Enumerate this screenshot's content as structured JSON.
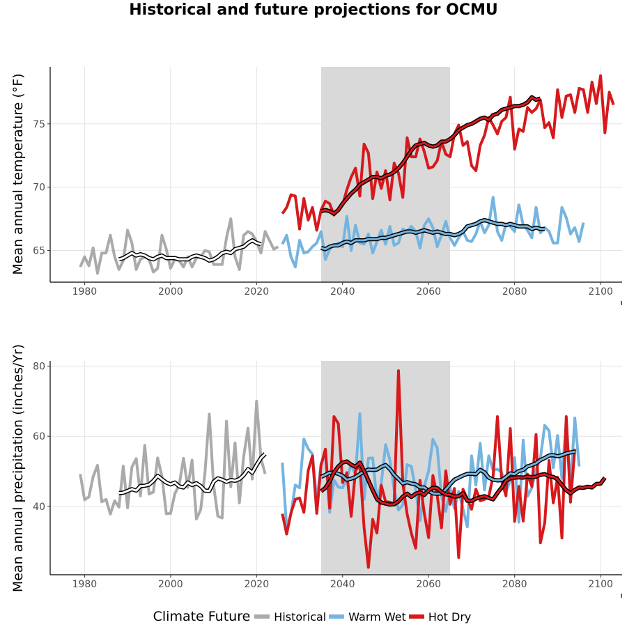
{
  "title": "Historical and future projections for OCMU",
  "legend": {
    "title": "Climate Future",
    "items": [
      {
        "label": "Historical",
        "color": "#aaaaaa"
      },
      {
        "label": "Warm Wet",
        "color": "#74b4e0"
      },
      {
        "label": "Hot Dry",
        "color": "#d7191c"
      }
    ]
  },
  "chart_data": [
    {
      "type": "line",
      "ylabel": "Mean annual temperature (°F)",
      "xlabel": "",
      "xlim": [
        1972,
        2105
      ],
      "ylim": [
        62.5,
        79.5
      ],
      "x_ticks": [
        1980,
        2000,
        2020,
        2040,
        2060,
        2080,
        2100
      ],
      "y_ticks": [
        65,
        70,
        75
      ],
      "shaded_period": [
        2035,
        2065
      ],
      "grid": true,
      "series": [
        {
          "name": "Historical",
          "color": "#aaaaaa",
          "x_start": 1979,
          "values": [
            63.7,
            64.5,
            63.8,
            65.2,
            63.2,
            64.8,
            64.8,
            66.2,
            64.5,
            63.5,
            64.2,
            66.6,
            65.6,
            63.5,
            64.3,
            64.5,
            64.3,
            63.3,
            63.6,
            66.2,
            65.1,
            63.6,
            64.3,
            64.2,
            63.7,
            64.5,
            63.7,
            64.4,
            64.5,
            65.0,
            64.9,
            63.9,
            63.9,
            63.9,
            66.0,
            67.5,
            64.5,
            63.5,
            66.2,
            66.5,
            66.3,
            65.7,
            64.8,
            66.5,
            65.8,
            65.1,
            65.3
          ]
        },
        {
          "name": "Warm Wet",
          "color": "#74b4e0",
          "x_start": 2026,
          "values": [
            65.5,
            66.2,
            64.5,
            63.7,
            65.8,
            64.8,
            64.9,
            65.3,
            65.6,
            66.5,
            64.3,
            65.1,
            65.4,
            65.6,
            65.3,
            67.7,
            65.0,
            67.0,
            65.6,
            65.5,
            66.3,
            64.8,
            65.7,
            66.6,
            65.5,
            66.9,
            65.4,
            65.6,
            66.7,
            66.5,
            66.9,
            66.5,
            65.2,
            67.0,
            67.5,
            66.8,
            65.3,
            66.2,
            67.3,
            66.0,
            65.4,
            66.0,
            66.5,
            65.8,
            65.7,
            66.3,
            67.3,
            66.4,
            67.0,
            69.2,
            66.5,
            65.8,
            67.1,
            66.9,
            66.5,
            68.6,
            67.0,
            66.6,
            66.0,
            68.4,
            66.4,
            66.8,
            66.5,
            65.6,
            65.6,
            68.4,
            67.6,
            66.3,
            66.8,
            65.7,
            67.2
          ]
        },
        {
          "name": "Hot Dry",
          "color": "#d7191c",
          "x_start": 2026,
          "values": [
            67.9,
            68.4,
            69.4,
            69.3,
            66.7,
            69.1,
            67.4,
            68.4,
            66.6,
            68.2,
            68.9,
            68.7,
            67.8,
            68.2,
            68.6,
            69.8,
            70.8,
            71.5,
            69.3,
            73.4,
            72.7,
            69.1,
            71.2,
            69.9,
            71.3,
            69.0,
            71.9,
            71.1,
            69.2,
            73.9,
            72.4,
            72.4,
            73.8,
            72.8,
            71.5,
            71.6,
            72.1,
            73.6,
            72.6,
            72.4,
            74.2,
            74.9,
            73.3,
            73.6,
            71.7,
            71.3,
            73.3,
            74.1,
            75.5,
            74.9,
            74.2,
            75.2,
            75.5,
            77.1,
            73.0,
            74.6,
            74.4,
            76.3,
            75.9,
            76.2,
            76.9,
            74.7,
            75.1,
            73.9,
            77.7,
            75.5,
            77.2,
            77.3,
            75.9,
            77.8,
            77.7,
            75.9,
            78.3,
            76.6,
            78.8,
            74.3,
            77.5,
            76.5
          ]
        },
        {
          "name": "Historical smoothed",
          "color": "#000000",
          "x_start": 1988,
          "values": [
            64.3,
            64.4,
            64.6,
            64.8,
            64.6,
            64.7,
            64.6,
            64.4,
            64.3,
            64.5,
            64.6,
            64.4,
            64.4,
            64.4,
            64.3,
            64.3,
            64.3,
            64.5,
            64.6,
            64.5,
            64.4,
            64.2,
            64.3,
            64.5,
            64.8,
            64.9,
            64.8,
            65.1,
            65.2,
            65.3,
            65.6,
            65.8,
            65.6,
            65.5
          ]
        },
        {
          "name": "Warm Wet smoothed",
          "color": "#000000",
          "x_start": 2035,
          "values": [
            65.2,
            65.1,
            65.3,
            65.4,
            65.4,
            65.6,
            65.7,
            65.6,
            65.8,
            65.8,
            65.8,
            65.9,
            65.9,
            65.9,
            66.0,
            66.0,
            66.1,
            66.2,
            66.3,
            66.4,
            66.5,
            66.5,
            66.4,
            66.5,
            66.6,
            66.5,
            66.4,
            66.5,
            66.4,
            66.3,
            66.3,
            66.2,
            66.3,
            66.5,
            66.9,
            67.0,
            67.1,
            67.3,
            67.4,
            67.3,
            67.2,
            67.1,
            67.1,
            67.0,
            67.1,
            67.0,
            66.9,
            66.9,
            66.9,
            66.7,
            66.8,
            66.7,
            66.7
          ]
        },
        {
          "name": "Hot Dry smoothed",
          "color": "#000000",
          "x_start": 2035,
          "values": [
            68.1,
            68.2,
            68.1,
            67.9,
            68.2,
            68.7,
            69.1,
            69.5,
            69.8,
            70.2,
            70.4,
            70.6,
            70.8,
            70.8,
            70.7,
            70.9,
            71.0,
            71.2,
            71.5,
            71.9,
            72.4,
            72.9,
            73.3,
            73.4,
            73.5,
            73.3,
            73.2,
            73.3,
            73.6,
            73.6,
            73.8,
            74.1,
            74.5,
            74.7,
            74.9,
            75.0,
            75.2,
            75.4,
            75.5,
            75.3,
            75.7,
            75.8,
            76.1,
            76.2,
            76.3,
            76.4,
            76.4,
            76.5,
            76.7,
            77.1,
            76.9,
            77.0
          ]
        }
      ]
    },
    {
      "type": "line",
      "ylabel": "Mean annual precipitation (inches/Yr)",
      "xlabel": "",
      "xlim": [
        1972,
        2105
      ],
      "ylim": [
        20.5,
        81.5
      ],
      "x_ticks": [
        1980,
        2000,
        2020,
        2040,
        2060,
        2080,
        2100
      ],
      "y_ticks": [
        40,
        60,
        80
      ],
      "shaded_period": [
        2035,
        2065
      ],
      "grid": true,
      "series": [
        {
          "name": "Historical",
          "color": "#aaaaaa",
          "x_start": 1979,
          "values": [
            49.2,
            41.9,
            42.7,
            48.5,
            51.7,
            41.3,
            42.0,
            37.8,
            41.6,
            39.8,
            51.5,
            39.6,
            51.2,
            53.6,
            43.0,
            57.4,
            43.5,
            44.1,
            53.8,
            48.5,
            37.9,
            38.0,
            43.6,
            46.1,
            53.7,
            45.4,
            53.2,
            36.4,
            39.1,
            49.5,
            66.3,
            46.0,
            37.2,
            36.7,
            64.3,
            45.6,
            58.1,
            41.0,
            54.3,
            62.3,
            47.8,
            70.0,
            53.7,
            49.3
          ]
        },
        {
          "name": "Warm Wet",
          "color": "#74b4e0",
          "x_start": 2026,
          "values": [
            52.5,
            33.7,
            37.9,
            46.1,
            45.3,
            59.2,
            56.4,
            54.9,
            41.2,
            52.2,
            54.8,
            38.3,
            47.5,
            45.5,
            45.3,
            48.0,
            51.9,
            49.0,
            66.4,
            42.0,
            53.7,
            53.8,
            41.4,
            46.6,
            57.6,
            53.2,
            44.8,
            39.0,
            40.4,
            51.9,
            51.4,
            44.6,
            35.9,
            45.7,
            50.1,
            59.1,
            56.7,
            42.9,
            38.6,
            45.4,
            39.4,
            44.3,
            39.3,
            34.2,
            54.4,
            46.1,
            58.0,
            44.7,
            54.4,
            50.3,
            50.6,
            49.7,
            44.2,
            47.4,
            53.9,
            35.5,
            58.9,
            42.9,
            45.3,
            50.4,
            53.7,
            63.1,
            61.6,
            51.0,
            60.2,
            48.0,
            64.6,
            45.6,
            65.2,
            51.4
          ]
        },
        {
          "name": "Hot Dry",
          "color": "#d7191c",
          "x_start": 2026,
          "values": [
            37.9,
            32.1,
            38.1,
            42.0,
            42.4,
            38.3,
            50.2,
            54.4,
            38.0,
            51.8,
            56.3,
            39.5,
            65.6,
            63.6,
            46.8,
            49.6,
            37.2,
            50.2,
            51.7,
            34.0,
            22.6,
            36.3,
            32.4,
            46.0,
            41.3,
            41.2,
            40.7,
            78.7,
            46.5,
            37.8,
            32.3,
            28.1,
            47.4,
            38.0,
            31.1,
            48.8,
            43.1,
            33.9,
            50.1,
            40.6,
            45.1,
            25.4,
            44.9,
            42.1,
            39.2,
            44.9,
            41.6,
            42.0,
            42.8,
            48.6,
            65.6,
            47.2,
            43.0,
            62.2,
            35.7,
            45.7,
            35.8,
            49.2,
            45.7,
            60.5,
            29.6,
            35.3,
            53.1,
            41.0,
            48.3,
            31.0,
            65.6,
            41.2,
            56.4
          ]
        },
        {
          "name": "Historical smoothed",
          "color": "#000000",
          "x_start": 1988,
          "values": [
            43.8,
            43.9,
            44.4,
            44.9,
            44.5,
            45.8,
            45.9,
            46.2,
            47.3,
            48.7,
            47.7,
            46.8,
            46.3,
            46.8,
            45.7,
            45.4,
            46.8,
            46.1,
            46.6,
            45.8,
            44.5,
            44.4,
            47.0,
            48.0,
            47.6,
            47.0,
            47.5,
            47.3,
            47.8,
            48.9,
            50.6,
            49.6,
            51.8,
            53.8,
            55.0
          ]
        },
        {
          "name": "Warm Wet smoothed",
          "color": "#000000",
          "x_start": 2035,
          "values": [
            48.4,
            49.0,
            49.6,
            49.6,
            49.3,
            48.7,
            47.6,
            47.9,
            48.4,
            49.2,
            49.9,
            50.5,
            50.4,
            50.5,
            51.3,
            51.8,
            50.6,
            49.0,
            47.8,
            46.5,
            46.9,
            46.5,
            46.3,
            45.4,
            45.4,
            44.4,
            43.7,
            43.6,
            43.7,
            44.8,
            46.3,
            47.6,
            48.2,
            48.8,
            49.3,
            49.3,
            49.2,
            50.4,
            49.7,
            48.2,
            47.6,
            47.4,
            47.5,
            48.4,
            49.4,
            49.2,
            50.1,
            50.4,
            51.4,
            51.8,
            52.3,
            53.2,
            53.8,
            54.5,
            54.6,
            54.3,
            54.6,
            55.1,
            55.4,
            55.6
          ]
        },
        {
          "name": "Hot Dry smoothed",
          "color": "#000000",
          "x_start": 2035,
          "values": [
            44.3,
            45.3,
            47.1,
            49.7,
            51.4,
            52.5,
            52.8,
            51.9,
            51.3,
            52.5,
            50.1,
            47.4,
            44.6,
            42.1,
            41.1,
            40.8,
            40.5,
            40.6,
            41.4,
            42.8,
            43.6,
            42.7,
            43.6,
            44.0,
            43.3,
            44.6,
            45.3,
            45.2,
            44.1,
            43.4,
            43.3,
            42.8,
            42.9,
            43.8,
            41.6,
            41.6,
            42.2,
            42.6,
            42.9,
            42.4,
            42.0,
            43.8,
            45.4,
            47.3,
            48.0,
            48.2,
            48.3,
            48.2,
            48.5,
            48.3,
            48.5,
            49.0,
            49.2,
            48.6,
            48.4,
            47.7,
            46.1,
            44.6,
            43.7,
            44.7,
            45.4,
            45.3,
            45.6,
            45.4,
            46.4,
            46.5,
            48.2
          ]
        }
      ]
    }
  ]
}
